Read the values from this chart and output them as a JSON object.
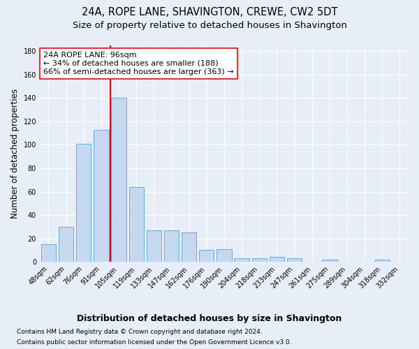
{
  "title": "24A, ROPE LANE, SHAVINGTON, CREWE, CW2 5DT",
  "subtitle": "Size of property relative to detached houses in Shavington",
  "xlabel": "Distribution of detached houses by size in Shavington",
  "ylabel": "Number of detached properties",
  "categories": [
    "48sqm",
    "62sqm",
    "76sqm",
    "91sqm",
    "105sqm",
    "119sqm",
    "133sqm",
    "147sqm",
    "162sqm",
    "176sqm",
    "190sqm",
    "204sqm",
    "218sqm",
    "233sqm",
    "247sqm",
    "261sqm",
    "275sqm",
    "289sqm",
    "304sqm",
    "318sqm",
    "332sqm"
  ],
  "values": [
    15,
    30,
    101,
    113,
    140,
    64,
    27,
    27,
    25,
    10,
    11,
    3,
    3,
    4,
    3,
    0,
    2,
    0,
    0,
    2,
    0
  ],
  "bar_color": "#c5d8f0",
  "bar_edgecolor": "#6aaad4",
  "vline_x": 3.5,
  "vline_color": "red",
  "annotation_text": "24A ROPE LANE: 96sqm\n← 34% of detached houses are smaller (188)\n66% of semi-detached houses are larger (363) →",
  "annotation_box_color": "white",
  "annotation_box_edgecolor": "red",
  "annotation_fontsize": 8,
  "ylim": [
    0,
    185
  ],
  "yticks": [
    0,
    20,
    40,
    60,
    80,
    100,
    120,
    140,
    160,
    180
  ],
  "background_color": "#e8eef8",
  "footer_line1": "Contains HM Land Registry data © Crown copyright and database right 2024.",
  "footer_line2": "Contains public sector information licensed under the Open Government Licence v3.0.",
  "title_fontsize": 10.5,
  "subtitle_fontsize": 9.5,
  "xlabel_fontsize": 9,
  "ylabel_fontsize": 8.5,
  "tick_fontsize": 7,
  "footer_fontsize": 6.5,
  "grid_color": "#ffffff"
}
